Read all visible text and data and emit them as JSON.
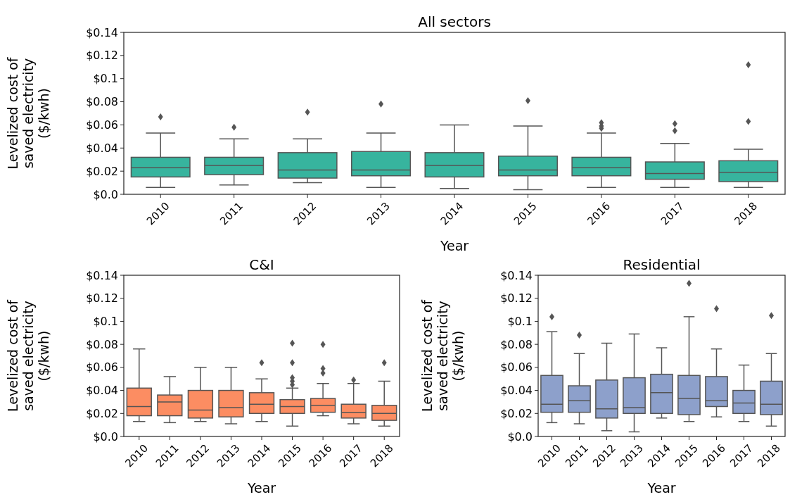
{
  "chart_data": [
    {
      "type": "box",
      "title": "All sectors",
      "xlabel": "Year",
      "ylabel": "Levelized cost of\nsaved electricity\n($/kwh)",
      "color": "#37b49e",
      "categories": [
        "2010",
        "2011",
        "2012",
        "2013",
        "2014",
        "2015",
        "2016",
        "2017",
        "2018"
      ],
      "ylim": [
        0,
        0.14
      ],
      "yticks": [
        {
          "value": 0,
          "label": "$0.0"
        },
        {
          "value": 0.02,
          "label": "$0.02"
        },
        {
          "value": 0.04,
          "label": "$0.04"
        },
        {
          "value": 0.06,
          "label": "$0.06"
        },
        {
          "value": 0.08,
          "label": "$0.08"
        },
        {
          "value": 0.1,
          "label": "$0.1"
        },
        {
          "value": 0.12,
          "label": "$0.12"
        },
        {
          "value": 0.14,
          "label": "$0.14"
        }
      ],
      "boxes": [
        {
          "low": 0.006,
          "q1": 0.015,
          "median": 0.023,
          "q3": 0.032,
          "high": 0.053,
          "outliers": [
            0.067
          ]
        },
        {
          "low": 0.008,
          "q1": 0.017,
          "median": 0.025,
          "q3": 0.032,
          "high": 0.048,
          "outliers": [
            0.058
          ]
        },
        {
          "low": 0.01,
          "q1": 0.014,
          "median": 0.021,
          "q3": 0.036,
          "high": 0.048,
          "outliers": [
            0.071
          ]
        },
        {
          "low": 0.006,
          "q1": 0.016,
          "median": 0.021,
          "q3": 0.037,
          "high": 0.053,
          "outliers": [
            0.078
          ]
        },
        {
          "low": 0.005,
          "q1": 0.015,
          "median": 0.025,
          "q3": 0.036,
          "high": 0.06
        },
        {
          "low": 0.004,
          "q1": 0.016,
          "median": 0.021,
          "q3": 0.033,
          "high": 0.059,
          "outliers": [
            0.081
          ]
        },
        {
          "low": 0.006,
          "q1": 0.016,
          "median": 0.023,
          "q3": 0.032,
          "high": 0.053,
          "outliers": [
            0.057,
            0.059,
            0.062
          ]
        },
        {
          "low": 0.006,
          "q1": 0.013,
          "median": 0.018,
          "q3": 0.028,
          "high": 0.044,
          "outliers": [
            0.055,
            0.061
          ]
        },
        {
          "low": 0.006,
          "q1": 0.011,
          "median": 0.019,
          "q3": 0.029,
          "high": 0.039,
          "outliers": [
            0.063,
            0.112
          ]
        }
      ]
    },
    {
      "type": "box",
      "title": "C&I",
      "xlabel": "Year",
      "ylabel": "Levelized cost of\nsaved electricity\n($/kwh)",
      "color": "#fc8d62",
      "categories": [
        "2010",
        "2011",
        "2012",
        "2013",
        "2014",
        "2015",
        "2016",
        "2017",
        "2018"
      ],
      "ylim": [
        0,
        0.14
      ],
      "yticks": [
        {
          "value": 0,
          "label": "$0.0"
        },
        {
          "value": 0.02,
          "label": "$0.02"
        },
        {
          "value": 0.04,
          "label": "$0.04"
        },
        {
          "value": 0.06,
          "label": "$0.06"
        },
        {
          "value": 0.08,
          "label": "$0.08"
        },
        {
          "value": 0.1,
          "label": "$0.1"
        },
        {
          "value": 0.12,
          "label": "$0.12"
        },
        {
          "value": 0.14,
          "label": "$0.14"
        }
      ],
      "boxes": [
        {
          "low": 0.013,
          "q1": 0.018,
          "median": 0.026,
          "q3": 0.042,
          "high": 0.076
        },
        {
          "low": 0.012,
          "q1": 0.018,
          "median": 0.03,
          "q3": 0.036,
          "high": 0.052
        },
        {
          "low": 0.013,
          "q1": 0.016,
          "median": 0.023,
          "q3": 0.04,
          "high": 0.06
        },
        {
          "low": 0.011,
          "q1": 0.017,
          "median": 0.025,
          "q3": 0.04,
          "high": 0.06
        },
        {
          "low": 0.013,
          "q1": 0.02,
          "median": 0.028,
          "q3": 0.038,
          "high": 0.05,
          "outliers": [
            0.064
          ]
        },
        {
          "low": 0.009,
          "q1": 0.02,
          "median": 0.026,
          "q3": 0.032,
          "high": 0.042,
          "outliers": [
            0.045,
            0.048,
            0.051,
            0.064,
            0.081
          ]
        },
        {
          "low": 0.018,
          "q1": 0.021,
          "median": 0.027,
          "q3": 0.033,
          "high": 0.046,
          "outliers": [
            0.055,
            0.059,
            0.08
          ]
        },
        {
          "low": 0.011,
          "q1": 0.016,
          "median": 0.021,
          "q3": 0.028,
          "high": 0.046,
          "outliers": [
            0.049
          ]
        },
        {
          "low": 0.009,
          "q1": 0.014,
          "median": 0.02,
          "q3": 0.027,
          "high": 0.048,
          "outliers": [
            0.064
          ]
        }
      ]
    },
    {
      "type": "box",
      "title": "Residential",
      "xlabel": "Year",
      "ylabel": "Levelized cost of\nsaved electricity\n($/kwh)",
      "color": "#8da0cb",
      "categories": [
        "2010",
        "2011",
        "2012",
        "2013",
        "2014",
        "2015",
        "2016",
        "2017",
        "2018"
      ],
      "ylim": [
        0,
        0.14
      ],
      "yticks": [
        {
          "value": 0,
          "label": "$0.0"
        },
        {
          "value": 0.02,
          "label": "$0.02"
        },
        {
          "value": 0.04,
          "label": "$0.04"
        },
        {
          "value": 0.06,
          "label": "$0.06"
        },
        {
          "value": 0.08,
          "label": "$0.08"
        },
        {
          "value": 0.1,
          "label": "$0.1"
        },
        {
          "value": 0.12,
          "label": "$0.12"
        },
        {
          "value": 0.14,
          "label": "$0.14"
        }
      ],
      "boxes": [
        {
          "low": 0.012,
          "q1": 0.021,
          "median": 0.028,
          "q3": 0.053,
          "high": 0.091,
          "outliers": [
            0.104
          ]
        },
        {
          "low": 0.011,
          "q1": 0.021,
          "median": 0.031,
          "q3": 0.044,
          "high": 0.072,
          "outliers": [
            0.088
          ]
        },
        {
          "low": 0.005,
          "q1": 0.016,
          "median": 0.024,
          "q3": 0.049,
          "high": 0.081
        },
        {
          "low": 0.004,
          "q1": 0.02,
          "median": 0.025,
          "q3": 0.051,
          "high": 0.089
        },
        {
          "low": 0.016,
          "q1": 0.02,
          "median": 0.038,
          "q3": 0.054,
          "high": 0.077
        },
        {
          "low": 0.013,
          "q1": 0.019,
          "median": 0.033,
          "q3": 0.053,
          "high": 0.104,
          "outliers": [
            0.133
          ]
        },
        {
          "low": 0.017,
          "q1": 0.026,
          "median": 0.031,
          "q3": 0.052,
          "high": 0.076,
          "outliers": [
            0.111
          ]
        },
        {
          "low": 0.013,
          "q1": 0.02,
          "median": 0.029,
          "q3": 0.04,
          "high": 0.062
        },
        {
          "low": 0.009,
          "q1": 0.019,
          "median": 0.028,
          "q3": 0.048,
          "high": 0.072,
          "outliers": [
            0.105
          ]
        }
      ]
    }
  ]
}
